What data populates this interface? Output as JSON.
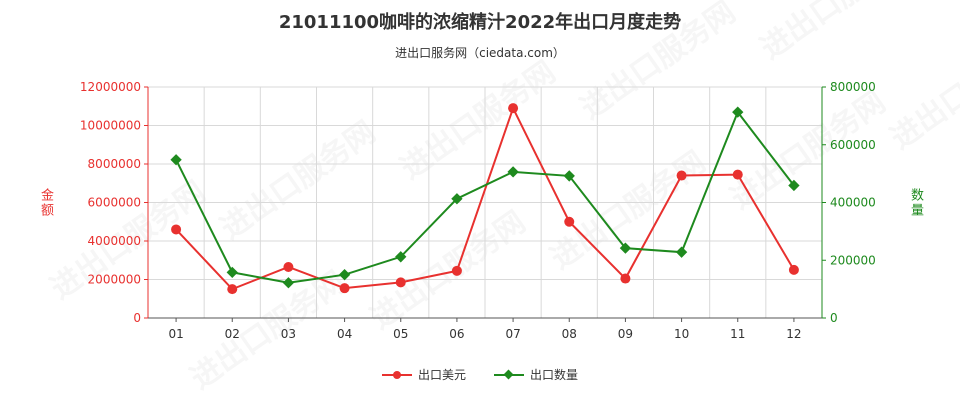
{
  "chart_data": {
    "type": "line",
    "title": "21011100咖啡的浓缩精汁2022年出口月度走势",
    "subtitle": "进出口服务网（ciedata.com）",
    "categories": [
      "01",
      "02",
      "03",
      "04",
      "05",
      "06",
      "07",
      "08",
      "09",
      "10",
      "11",
      "12"
    ],
    "ylabel_left": "金额",
    "ylabel_right": "数量",
    "ylim_left": [
      0,
      12000000
    ],
    "yticks_left": [
      "0",
      "2000000",
      "4000000",
      "6000000",
      "8000000",
      "10000000",
      "12000000"
    ],
    "ylim_right": [
      0,
      800000
    ],
    "yticks_right": [
      "0",
      "200000",
      "400000",
      "600000",
      "800000"
    ],
    "grid": true,
    "legend_position": "bottom",
    "watermark": "进出口服务网",
    "series": [
      {
        "name": "出口美元",
        "axis": "left",
        "color": "#e8312f",
        "marker": "circle",
        "values": [
          4600000,
          1500000,
          2650000,
          1550000,
          1850000,
          2450000,
          10900000,
          5000000,
          2050000,
          7400000,
          7450000,
          2500000
        ]
      },
      {
        "name": "出口数量",
        "axis": "right",
        "color": "#1e8a1e",
        "marker": "diamond",
        "values": [
          548000,
          158000,
          122000,
          150000,
          212000,
          413000,
          506000,
          492000,
          242000,
          228000,
          713000,
          459000
        ]
      }
    ]
  }
}
